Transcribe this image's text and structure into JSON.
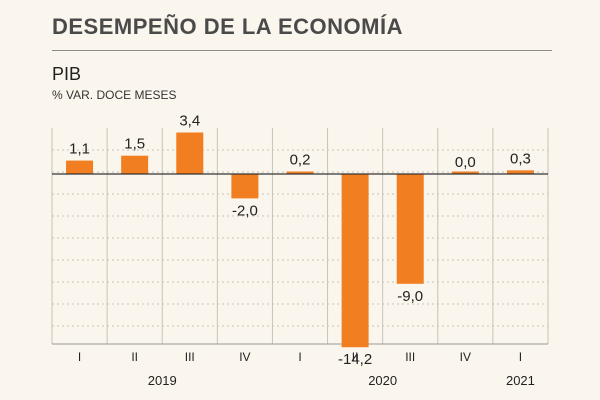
{
  "header": {
    "title": "DESEMPEÑO DE LA ECONOMÍA",
    "series_name": "PIB",
    "unit": "% VAR. DOCE MESES"
  },
  "colors": {
    "bar": "#f27e22",
    "background": "#faf6ed",
    "grid": "#c8c3b8",
    "zero_line": "#333333"
  },
  "chart_data": {
    "type": "bar",
    "title": "DESEMPEÑO DE LA ECONOMÍA",
    "subtitle": "PIB",
    "ylabel": "% VAR. DOCE MESES",
    "categories": [
      "I",
      "II",
      "III",
      "IV",
      "I",
      "II",
      "III",
      "IV",
      "I"
    ],
    "values": [
      1.1,
      1.5,
      3.4,
      -2.0,
      0.2,
      -14.2,
      -9.0,
      0.0,
      0.3
    ],
    "value_labels": [
      "1,1",
      "1,5",
      "3,4",
      "-2,0",
      "0,2",
      "-14,2",
      "-9,0",
      "0,0",
      "0,3"
    ],
    "years": [
      {
        "label": "2019",
        "start": 0,
        "end": 3
      },
      {
        "label": "2020",
        "start": 4,
        "end": 7
      },
      {
        "label": "2021",
        "start": 8,
        "end": 8
      }
    ],
    "ylim": [
      -16,
      4.5
    ],
    "grid": true
  }
}
